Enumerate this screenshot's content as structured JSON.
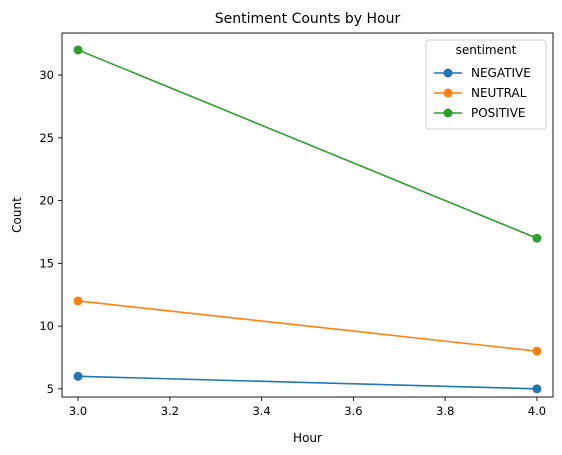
{
  "chart_data": {
    "type": "line",
    "title": "Sentiment Counts by Hour",
    "xlabel": "Hour",
    "ylabel": "Count",
    "x": [
      3.0,
      4.0
    ],
    "xlim": [
      2.965,
      4.035
    ],
    "ylim": [
      4.35,
      33.35
    ],
    "xticks": [
      3.0,
      3.2,
      3.4,
      3.6,
      3.8,
      4.0
    ],
    "xtick_labels": [
      "3.0",
      "3.2",
      "3.4",
      "3.6",
      "3.8",
      "4.0"
    ],
    "yticks": [
      5,
      10,
      15,
      20,
      25,
      30
    ],
    "ytick_labels": [
      "5",
      "10",
      "15",
      "20",
      "25",
      "30"
    ],
    "grid": false,
    "legend": {
      "title": "sentiment",
      "placement": "top-right"
    },
    "series": [
      {
        "name": "NEGATIVE",
        "values": [
          6,
          5
        ],
        "color": "#1f77b4",
        "marker": "circle"
      },
      {
        "name": "NEUTRAL",
        "values": [
          12,
          8
        ],
        "color": "#ff7f0e",
        "marker": "circle"
      },
      {
        "name": "POSITIVE",
        "values": [
          32,
          17
        ],
        "color": "#2ca02c",
        "marker": "circle"
      }
    ]
  }
}
